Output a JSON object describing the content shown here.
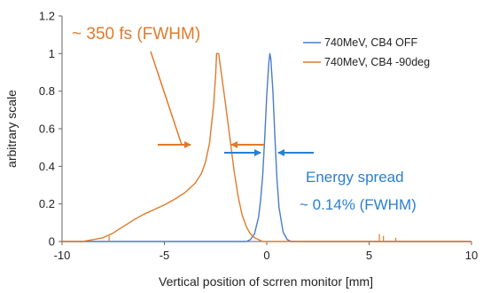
{
  "chart_data": {
    "type": "line",
    "xlabel": "Vertical position of scrren monitor [mm]",
    "ylabel": "arbitrary scale",
    "xlim": [
      -10,
      10
    ],
    "ylim": [
      0,
      1.2
    ],
    "xticks": [
      "-10",
      "-5",
      "0",
      "5",
      "10"
    ],
    "yticks": [
      "0",
      "0.2",
      "0.4",
      "0.6",
      "0.8",
      "1",
      "1.2"
    ],
    "grid": false,
    "legend_position": "top-right",
    "series": [
      {
        "name": "740MeV, CB4 OFF",
        "color": "#4a7cc9",
        "x": [
          -10,
          -1.0,
          -0.8,
          -0.6,
          -0.4,
          -0.3,
          -0.2,
          -0.1,
          0.0,
          0.1,
          0.15,
          0.2,
          0.3,
          0.4,
          0.5,
          0.6,
          0.8,
          1.0,
          1.2,
          10
        ],
        "y": [
          0.0,
          0.0,
          0.01,
          0.04,
          0.13,
          0.22,
          0.35,
          0.55,
          0.78,
          0.95,
          1.0,
          0.97,
          0.8,
          0.55,
          0.33,
          0.18,
          0.05,
          0.01,
          0.0,
          0.0
        ]
      },
      {
        "name": "740MeV, CB4 -90deg",
        "color": "#e07a2a",
        "x": [
          -10,
          -9.0,
          -8.5,
          -8.0,
          -7.8,
          -7.5,
          -7.3,
          -7.0,
          -6.5,
          -6.0,
          -5.5,
          -5.0,
          -4.5,
          -4.0,
          -3.5,
          -3.2,
          -3.0,
          -2.8,
          -2.6,
          -2.5,
          -2.45,
          -2.35,
          -2.3,
          -2.2,
          -2.0,
          -1.8,
          -1.6,
          -1.4,
          -1.2,
          -1.0,
          -0.8,
          -0.6,
          -0.4,
          -0.2,
          0.0,
          10
        ],
        "y": [
          0.0,
          0.0,
          0.01,
          0.02,
          0.03,
          0.045,
          0.06,
          0.08,
          0.115,
          0.145,
          0.17,
          0.195,
          0.225,
          0.26,
          0.31,
          0.36,
          0.42,
          0.52,
          0.72,
          0.88,
          1.0,
          1.0,
          0.96,
          0.88,
          0.72,
          0.55,
          0.38,
          0.24,
          0.14,
          0.08,
          0.04,
          0.02,
          0.01,
          0.0,
          0.0,
          0.0
        ]
      }
    ],
    "noise_spikes": [
      {
        "x": -7.7,
        "y": 0.03,
        "series": 1
      },
      {
        "x": 5.5,
        "y": 0.04,
        "series": 1
      },
      {
        "x": 5.7,
        "y": 0.03,
        "series": 1
      },
      {
        "x": 6.3,
        "y": 0.02,
        "series": 1
      }
    ],
    "annotations": [
      {
        "text": "~ 350 fs (FWHM)",
        "color": "#e07a2a"
      },
      {
        "text": "Energy spread",
        "color": "#2a7fcf"
      },
      {
        "text": "~ 0.14% (FWHM)",
        "color": "#2a7fcf"
      }
    ]
  }
}
